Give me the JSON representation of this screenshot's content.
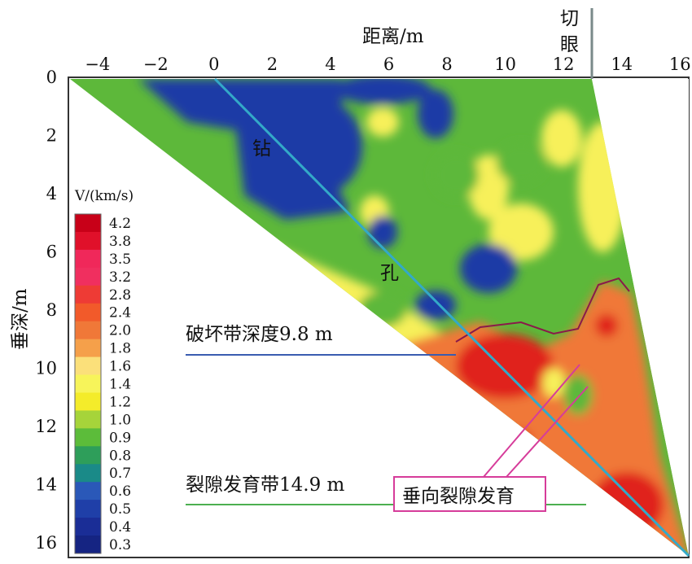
{
  "chart_data": {
    "type": "heatmap",
    "title": "",
    "xlabel": "距离/m",
    "ylabel": "垂深/m",
    "x_ticks": [
      "−4",
      "−2",
      "0",
      "2",
      "4",
      "6",
      "8",
      "10",
      "12",
      "14",
      "16"
    ],
    "y_ticks": [
      "0",
      "2",
      "4",
      "6",
      "8",
      "10",
      "12",
      "14",
      "16"
    ],
    "xlim": [
      -5,
      16.3
    ],
    "ylim": [
      0,
      16.5
    ],
    "colorbar": {
      "title": "V/(km/s)",
      "levels": [
        "4.2",
        "3.8",
        "3.5",
        "3.2",
        "2.8",
        "2.4",
        "2.0",
        "1.8",
        "1.6",
        "1.4",
        "1.2",
        "1.0",
        "0.9",
        "0.8",
        "0.7",
        "0.6",
        "0.5",
        "0.4",
        "0.3"
      ],
      "colors": [
        "#c80018",
        "#e0102a",
        "#f0285a",
        "#f02f5f",
        "#ee3b35",
        "#f25a2a",
        "#f07838",
        "#f5a04a",
        "#fbe07a",
        "#f7f45a",
        "#f4ec2a",
        "#a6d43a",
        "#5cbc3a",
        "#2e9e5a",
        "#1a8a88",
        "#2a58b8",
        "#1f3fa8",
        "#1a2d96",
        "#152482"
      ]
    },
    "section_triangle": {
      "top_left": [
        -5,
        0
      ],
      "top_right": [
        12.8,
        0
      ],
      "apex": [
        16.2,
        16.5
      ]
    },
    "borehole": {
      "label_top": "钻",
      "label_bottom": "孔",
      "from": [
        0,
        0
      ],
      "to": [
        16.2,
        16.5
      ]
    },
    "cut_eye": {
      "label": "切眼",
      "x": 12.9
    },
    "annotations": [
      {
        "text": "破坏带深度9.8 m",
        "depth": 9.5
      },
      {
        "text": "裂隙发育带14.9 m",
        "depth": 14.8
      },
      {
        "text": "垂向裂隙发育"
      }
    ]
  },
  "colors": {
    "blue": "#1f3aa6",
    "green": "#5db83a",
    "yellow": "#f7f05a",
    "orange": "#f07838",
    "red": "#e0201e"
  }
}
